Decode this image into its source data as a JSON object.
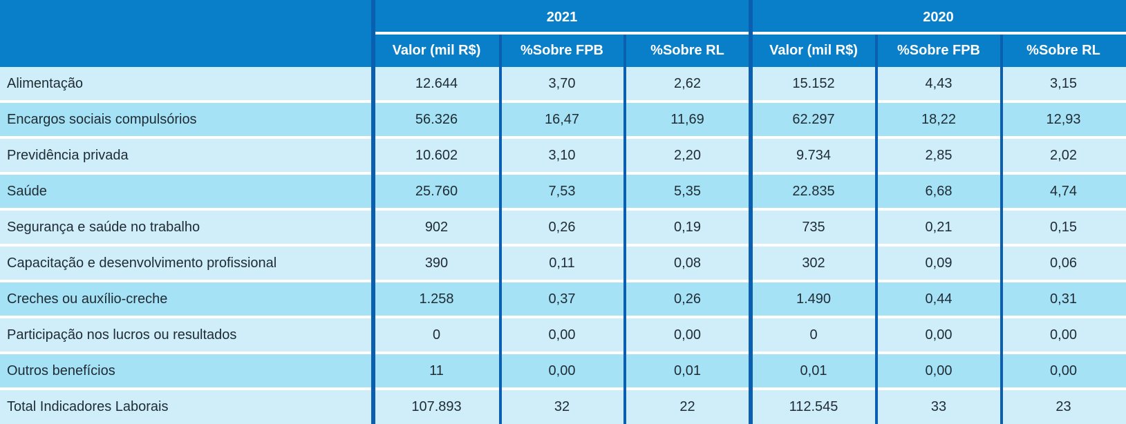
{
  "header": {
    "year_2021": "2021",
    "year_2020": "2020",
    "columns": [
      "Valor (mil R$)",
      "%Sobre FPB",
      "%Sobre RL",
      "Valor (mil R$)",
      "%Sobre FPB",
      "%Sobre RL"
    ]
  },
  "rows": [
    {
      "label": "Alimentação",
      "v": [
        "12.644",
        "3,70",
        "2,62",
        "15.152",
        "4,43",
        "3,15"
      ]
    },
    {
      "label": "Encargos sociais compulsórios",
      "v": [
        "56.326",
        "16,47",
        "11,69",
        "62.297",
        "18,22",
        "12,93"
      ]
    },
    {
      "label": "Previdência privada",
      "v": [
        "10.602",
        "3,10",
        "2,20",
        "9.734",
        "2,85",
        "2,02"
      ]
    },
    {
      "label": "Saúde",
      "v": [
        "25.760",
        "7,53",
        "5,35",
        "22.835",
        "6,68",
        "4,74"
      ]
    },
    {
      "label": "Segurança e saúde no trabalho",
      "v": [
        "902",
        "0,26",
        "0,19",
        "735",
        "0,21",
        "0,15"
      ]
    },
    {
      "label": "Capacitação e desenvolvimento profissional",
      "v": [
        "390",
        "0,11",
        "0,08",
        "302",
        "0,09",
        "0,06"
      ]
    },
    {
      "label": "Creches ou auxílio-creche",
      "v": [
        "1.258",
        "0,37",
        "0,26",
        "1.490",
        "0,44",
        "0,31"
      ]
    },
    {
      "label": "Participação nos lucros ou resultados",
      "v": [
        "0",
        "0,00",
        "0,00",
        "0",
        "0,00",
        "0,00"
      ]
    },
    {
      "label": "Outros benefícios",
      "v": [
        "11",
        "0,00",
        "0,01",
        "0,01",
        "0,00",
        "0,00"
      ]
    },
    {
      "label": "Total Indicadores Laborais",
      "v": [
        "107.893",
        "32",
        "22",
        "112.545",
        "33",
        "23"
      ]
    }
  ],
  "colors": {
    "header_blue": "#0a7fc9",
    "divider_blue": "#0b5fb0",
    "row_light": "#cfeefa",
    "row_dark": "#a6e2f5"
  }
}
